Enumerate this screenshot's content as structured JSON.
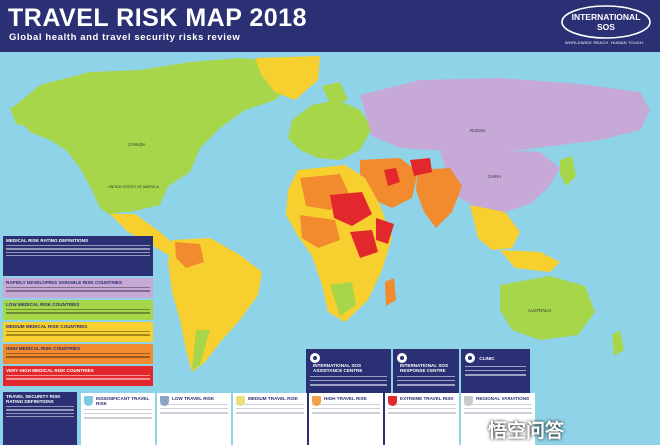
{
  "header": {
    "title": "TRAVEL RISK MAP 2018",
    "subtitle": "Global health and travel security risks review"
  },
  "logo": {
    "name": "INTERNATIONAL SOS",
    "tagline": "WORLDWIDE REACH. HUMAN TOUCH."
  },
  "map": {
    "ocean_color": "#8fd3e8",
    "country_labels": {
      "canada": "CANADA",
      "usa": "UNITED STATES OF AMERICA",
      "russia": "RUSSIA",
      "china": "CHINA",
      "australia": "AUSTRALIA"
    },
    "risk_colors": {
      "variable": "#c6a9d6",
      "low": "#a8d64a",
      "medium": "#f7d02f",
      "high": "#f28a2e",
      "very_high": "#e2282c",
      "insignificant_security": "#bfe7f5",
      "low_security": "#eef2c1",
      "extreme": "#e2282c"
    }
  },
  "legend": {
    "medical_title": "MEDICAL RISK RATING DEFINITIONS",
    "variable_title": "RAPIDLY DEVELOPING VARIABLE RISK COUNTRIES",
    "low_title": "LOW MEDICAL RISK COUNTRIES",
    "medium_title": "MEDIUM MEDICAL RISK COUNTRIES",
    "high_title": "HIGH MEDICAL RISK COUNTRIES",
    "very_high_title": "VERY HIGH MEDICAL RISK COUNTRIES",
    "security_title": "TRAVEL SECURITY RISK RATING DEFINITIONS"
  },
  "bottom_boxes": [
    {
      "label": "INSIGNIFICANT TRAVEL RISK",
      "color": "#7ec8e3"
    },
    {
      "label": "LOW TRAVEL RISK",
      "color": "#8aa2c8"
    },
    {
      "label": "MEDIUM TRAVEL RISK",
      "color": "#e9e07a"
    },
    {
      "label": "HIGH TRAVEL RISK",
      "color": "#f0a24a"
    },
    {
      "label": "EXTREME TRAVEL RISK",
      "color": "#e2282c"
    },
    {
      "label": "REGIONAL VARIATIONS",
      "color": "#c9c9c9"
    }
  ],
  "info_boxes": [
    {
      "label": "INTERNATIONAL SOS ASSISTANCE CENTRE"
    },
    {
      "label": "INTERNATIONAL SOS RESPONSE CENTRE"
    },
    {
      "label": "CLINIC"
    }
  ],
  "watermark": "悟空问答"
}
